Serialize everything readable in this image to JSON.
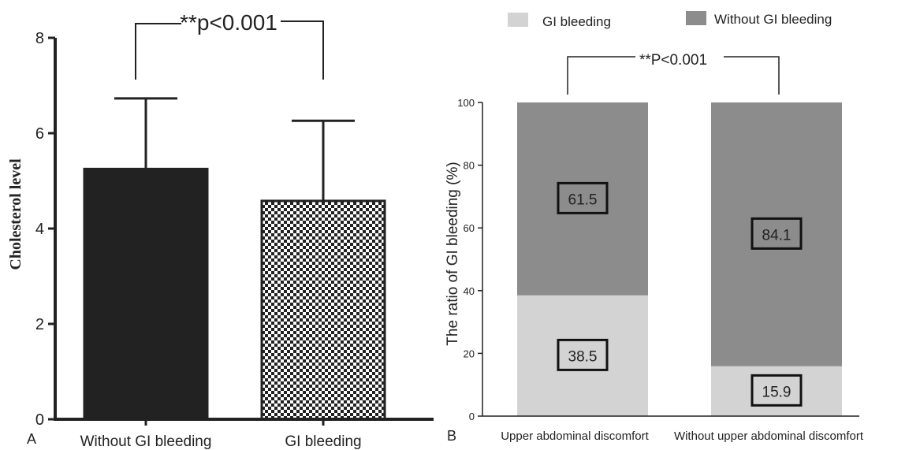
{
  "panels": {
    "a_label": "A",
    "b_label": "B"
  },
  "chart_data": [
    {
      "type": "bar",
      "panel": "A",
      "categories": [
        "Without GI bleeding",
        "GI bleeding"
      ],
      "values": [
        5.25,
        4.58
      ],
      "error_upper": [
        6.73,
        6.26
      ],
      "title": "",
      "xlabel": "",
      "ylabel": "Cholesterol level",
      "ylim": [
        0,
        8
      ],
      "yticks": [
        "0",
        "2",
        "4",
        "6",
        "8"
      ],
      "annotation": "**p<0.001",
      "grid": false,
      "colors": [
        "#222222",
        "checkered"
      ]
    },
    {
      "type": "bar",
      "stacked": true,
      "panel": "B",
      "categories": [
        "Upper abdominal discomfort",
        "Without upper abdominal discomfort"
      ],
      "series": [
        {
          "name": "GI bleeding",
          "values": [
            38.5,
            15.9
          ],
          "labels": [
            "38.5",
            "15.9"
          ],
          "color": "#d3d3d3"
        },
        {
          "name": "Without GI bleeding",
          "values": [
            61.5,
            84.1
          ],
          "labels": [
            "61.5",
            "84.1"
          ],
          "color": "#8c8c8c"
        }
      ],
      "title": "",
      "xlabel": "",
      "ylabel": "The ratio of GI bleeding (%)",
      "ylim": [
        0,
        100
      ],
      "yticks": [
        "0",
        "20",
        "40",
        "60",
        "80",
        "100"
      ],
      "annotation": "**P<0.001",
      "legend_position": "top",
      "grid": false
    }
  ]
}
